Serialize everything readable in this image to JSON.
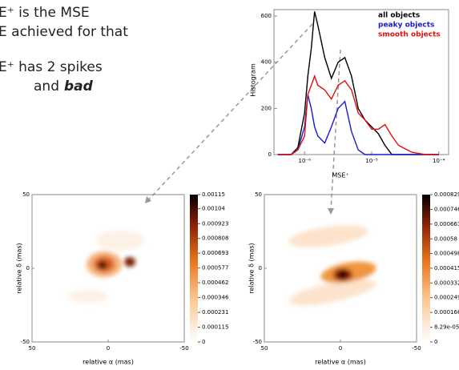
{
  "text": {
    "lines": [
      "E⁺ is the MSE",
      "E achieved for that",
      "E⁺ has 2 spikes",
      "and"
    ],
    "emphasis": "bad"
  },
  "chart_data": [
    {
      "type": "line",
      "ylabel": "Histogram",
      "xlabel": "MSE⁺",
      "log_x": true,
      "legend": "upper right",
      "xlim": [
        3.5e-07,
        0.00014
      ],
      "ylim": [
        0,
        628
      ],
      "xticks": [
        {
          "value": 1e-06,
          "label": "10⁻⁶"
        },
        {
          "value": 1e-05,
          "label": "10⁻⁵"
        },
        {
          "value": 0.0001,
          "label": "10⁻⁴"
        }
      ],
      "yticks": [
        0,
        200,
        400,
        600
      ],
      "x": [
        3.98e-07,
        6.31e-07,
        7.94e-07,
        1e-06,
        1.12e-06,
        1.26e-06,
        1.41e-06,
        1.58e-06,
        2e-06,
        2.51e-06,
        3.16e-06,
        3.98e-06,
        5.01e-06,
        6.31e-06,
        7.94e-06,
        1e-05,
        1.26e-05,
        1.58e-05,
        2e-05,
        2.51e-05,
        3.98e-05,
        6.31e-05,
        0.0001
      ],
      "series": [
        {
          "name": "all objects",
          "color": "#000000",
          "values": [
            0,
            0,
            30,
            180,
            340,
            460,
            620,
            560,
            420,
            330,
            400,
            420,
            340,
            200,
            150,
            120,
            90,
            40,
            0,
            0,
            0,
            0,
            0
          ]
        },
        {
          "name": "peaky objects",
          "color": "#1a1ad0",
          "values": [
            0,
            0,
            20,
            120,
            260,
            200,
            120,
            80,
            50,
            120,
            200,
            230,
            100,
            20,
            0,
            0,
            0,
            0,
            0,
            0,
            0,
            0,
            0
          ]
        },
        {
          "name": "smooth objects",
          "color": "#e01010",
          "values": [
            0,
            0,
            20,
            80,
            260,
            300,
            340,
            300,
            280,
            240,
            300,
            320,
            280,
            180,
            150,
            110,
            110,
            130,
            80,
            40,
            10,
            0,
            0
          ]
        }
      ]
    },
    {
      "type": "image",
      "xlabel": "relative α (mas)",
      "ylabel": "relative δ (mas)",
      "xlim": [
        50,
        -50
      ],
      "ylim": [
        -50,
        50
      ],
      "xticks": [
        50,
        0,
        -50
      ],
      "yticks": [
        -50,
        0,
        50
      ],
      "colorbar": {
        "lim": [
          0,
          0.00115
        ],
        "ticks": [
          0,
          0.000115,
          0.000231,
          0.000346,
          0.000462,
          0.000577,
          0.000693,
          0.000808,
          0.000923,
          0.00104,
          0.00115
        ]
      }
    },
    {
      "type": "image",
      "xlabel": "relative α (mas)",
      "ylabel": "relative δ (mas)",
      "xlim": [
        50,
        -50
      ],
      "ylim": [
        -50,
        50
      ],
      "xticks": [
        50,
        0,
        -50
      ],
      "yticks": [
        -50,
        0,
        50
      ],
      "colorbar": {
        "lim": [
          0,
          0.000829
        ],
        "ticks": [
          0,
          {
            "value": 8.29e-05,
            "label": "8.29e-05"
          },
          0.000166,
          0.000249,
          0.000332,
          0.000415,
          0.000498,
          0.00058,
          0.000663,
          0.000746,
          0.000829
        ]
      }
    }
  ]
}
